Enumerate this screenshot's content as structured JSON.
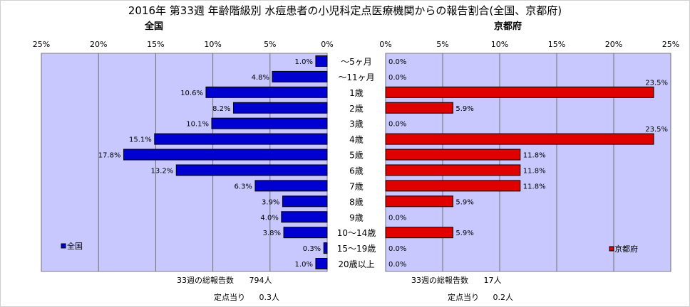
{
  "title": "2016年 第33週 年齢階級別 水痘患者の小児科定点医療機関からの報告割合(全国、京都府)",
  "colors": {
    "plot_bg": "#c8c8ff",
    "national_bar": "#0000d0",
    "kyoto_bar": "#e00000"
  },
  "chart_data": [
    {
      "type": "bar",
      "orientation": "horizontal-reversed",
      "title": "全国",
      "categories": [
        "～5ヶ月",
        "～11ヶ月",
        "1歳",
        "2歳",
        "3歳",
        "4歳",
        "5歳",
        "6歳",
        "7歳",
        "8歳",
        "9歳",
        "10～14歳",
        "15～19歳",
        "20歳以上"
      ],
      "values": [
        1.0,
        4.8,
        10.6,
        8.2,
        10.1,
        15.1,
        17.8,
        13.2,
        6.3,
        3.9,
        4.0,
        3.8,
        0.3,
        1.0
      ],
      "data_labels": [
        "1.0%",
        "4.8%",
        "10.6%",
        "8.2%",
        "10.1%",
        "15.1%",
        "17.8%",
        "13.2%",
        "6.3%",
        "3.9%",
        "4.0%",
        "3.8%",
        "0.3%",
        "1.0%"
      ],
      "xlim": [
        0,
        25
      ],
      "xticks": [
        "25%",
        "20%",
        "15%",
        "10%",
        "5%",
        "0%"
      ],
      "legend": "全国",
      "legend_position": "bottom-left",
      "grid": true
    },
    {
      "type": "bar",
      "orientation": "horizontal",
      "title": "京都府",
      "categories": [
        "～5ヶ月",
        "～11ヶ月",
        "1歳",
        "2歳",
        "3歳",
        "4歳",
        "5歳",
        "6歳",
        "7歳",
        "8歳",
        "9歳",
        "10～14歳",
        "15～19歳",
        "20歳以上"
      ],
      "values": [
        0.0,
        0.0,
        23.5,
        5.9,
        0.0,
        23.5,
        11.8,
        11.8,
        11.8,
        5.9,
        0.0,
        5.9,
        0.0,
        0.0
      ],
      "data_labels": [
        "0.0%",
        "0.0%",
        "23.5%",
        "5.9%",
        "0.0%",
        "23.5%",
        "11.8%",
        "11.8%",
        "11.8%",
        "5.9%",
        "0.0%",
        "5.9%",
        "0.0%",
        "0.0%"
      ],
      "xlim": [
        0,
        25
      ],
      "xticks": [
        "0%",
        "5%",
        "10%",
        "15%",
        "20%",
        "25%"
      ],
      "legend": "京都府",
      "legend_position": "bottom-right",
      "grid": true
    }
  ],
  "footer": {
    "national": {
      "total_label": "33週の総報告数",
      "total_value": "794人",
      "per_label": "定点当り",
      "per_value": "0.3人"
    },
    "kyoto": {
      "total_label": "33週の総報告数",
      "total_value": "17人",
      "per_label": "定点当り",
      "per_value": "0.2人"
    }
  }
}
